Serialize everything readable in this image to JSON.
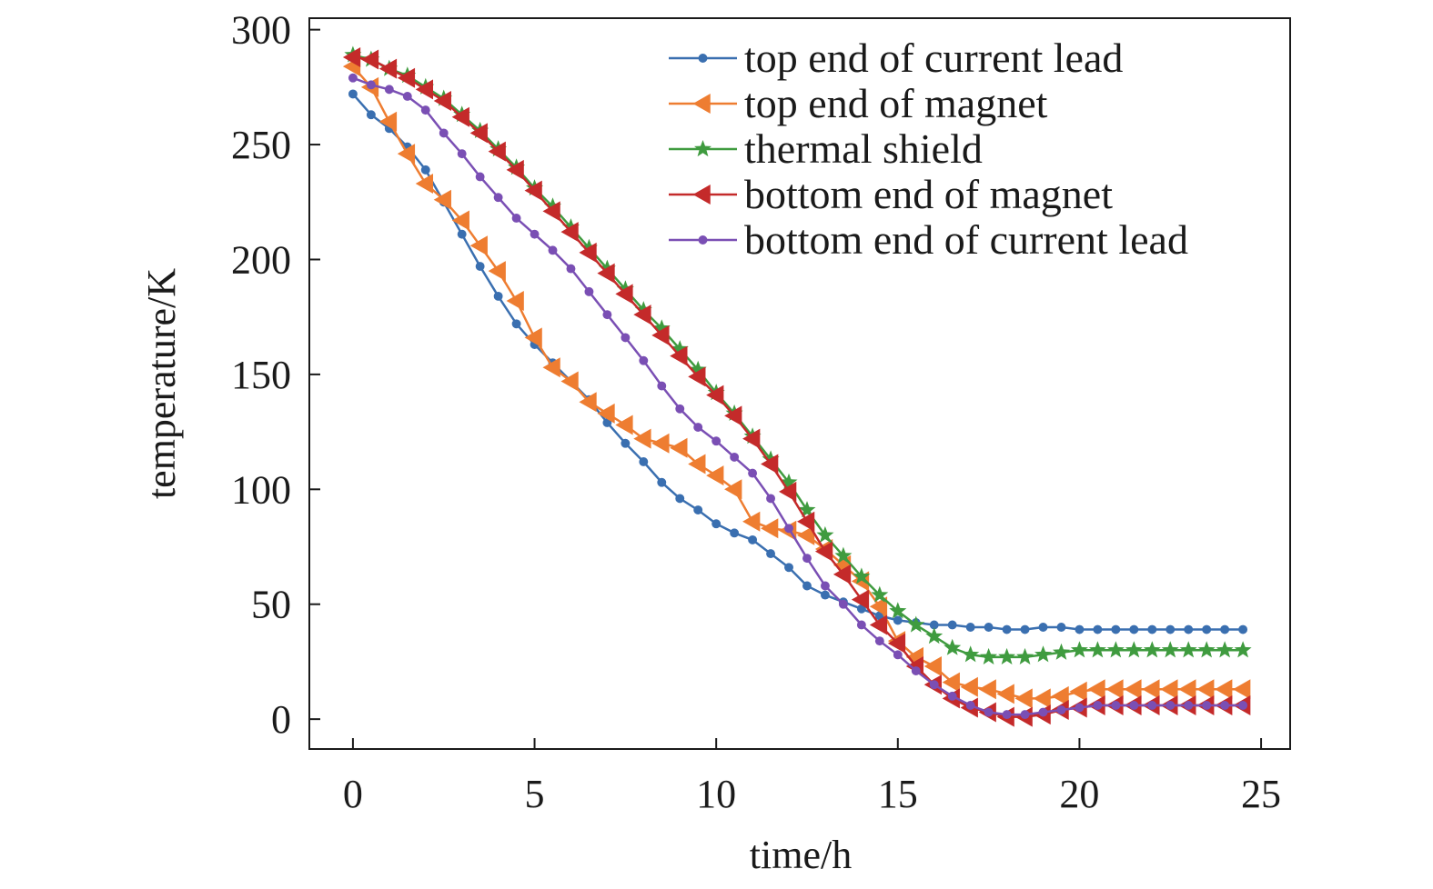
{
  "chart_data": {
    "type": "line",
    "xlabel": "time/h",
    "ylabel": "temperature/K",
    "xlim": [
      -1.2,
      25.8
    ],
    "ylim": [
      -13,
      305
    ],
    "xticks": [
      0,
      5,
      10,
      15,
      20,
      25
    ],
    "yticks": [
      0,
      50,
      100,
      150,
      200,
      250,
      300
    ],
    "legend_position": "top-right",
    "x": [
      0,
      0.5,
      1,
      1.5,
      2,
      2.5,
      3,
      3.5,
      4,
      4.5,
      5,
      5.5,
      6,
      6.5,
      7,
      7.5,
      8,
      8.5,
      9,
      9.5,
      10,
      10.5,
      11,
      11.5,
      12,
      12.5,
      13,
      13.5,
      14,
      14.5,
      15,
      15.5,
      16,
      16.5,
      17,
      17.5,
      18,
      18.5,
      19,
      19.5,
      20,
      20.5,
      21,
      21.5,
      22,
      22.5,
      23,
      23.5,
      24,
      24.5
    ],
    "series": [
      {
        "name": "top end of current lead",
        "color": "#3a6fb0",
        "marker": "circle",
        "values": [
          272,
          263,
          257,
          249,
          239,
          225,
          211,
          197,
          184,
          172,
          163,
          155,
          147,
          139,
          129,
          120,
          112,
          103,
          96,
          91,
          85,
          81,
          78,
          72,
          66,
          58,
          54,
          51,
          48,
          45,
          43,
          42,
          41,
          41,
          40,
          40,
          39,
          39,
          40,
          40,
          39,
          39,
          39,
          39,
          39,
          39,
          39,
          39,
          39,
          39
        ]
      },
      {
        "name": "top end of magnet",
        "color": "#ee7d31",
        "marker": "triangle-left",
        "values": [
          284,
          275,
          260,
          246,
          233,
          226,
          217,
          206,
          195,
          182,
          166,
          153,
          147,
          138,
          133,
          128,
          122,
          120,
          118,
          111,
          106,
          100,
          86,
          83,
          82,
          80,
          74,
          67,
          60,
          49,
          34,
          27,
          23,
          16,
          14,
          13,
          11,
          9,
          9,
          10,
          12,
          13,
          13,
          13,
          13,
          13,
          13,
          13,
          13,
          13
        ]
      },
      {
        "name": "thermal shield",
        "color": "#3f9b3f",
        "marker": "star",
        "values": [
          289,
          287,
          283,
          280,
          275,
          270,
          263,
          256,
          248,
          240,
          231,
          223,
          214,
          205,
          196,
          187,
          178,
          170,
          161,
          152,
          142,
          133,
          123,
          113,
          103,
          91,
          80,
          71,
          62,
          54,
          47,
          41,
          36,
          31,
          28,
          27,
          27,
          27,
          28,
          29,
          30,
          30,
          30,
          30,
          30,
          30,
          30,
          30,
          30,
          30
        ]
      },
      {
        "name": "bottom end of magnet",
        "color": "#c42a2a",
        "marker": "triangle-left",
        "values": [
          288,
          287,
          283,
          279,
          274,
          269,
          262,
          255,
          247,
          239,
          230,
          221,
          212,
          203,
          194,
          185,
          176,
          167,
          158,
          149,
          141,
          132,
          122,
          111,
          99,
          86,
          73,
          63,
          52,
          41,
          33,
          23,
          15,
          9,
          5,
          3,
          1,
          1,
          2,
          4,
          5,
          6,
          6,
          6,
          6,
          6,
          6,
          6,
          6,
          6
        ]
      },
      {
        "name": "bottom end of current lead",
        "color": "#7a4fb4",
        "marker": "circle",
        "values": [
          279,
          276,
          274,
          271,
          265,
          255,
          246,
          236,
          227,
          218,
          211,
          204,
          196,
          186,
          176,
          166,
          156,
          145,
          135,
          127,
          121,
          114,
          107,
          96,
          83,
          70,
          58,
          50,
          41,
          34,
          28,
          21,
          15,
          10,
          6,
          3,
          2,
          2,
          3,
          4,
          5,
          6,
          6,
          6,
          6,
          6,
          6,
          6,
          6,
          6
        ]
      }
    ]
  }
}
